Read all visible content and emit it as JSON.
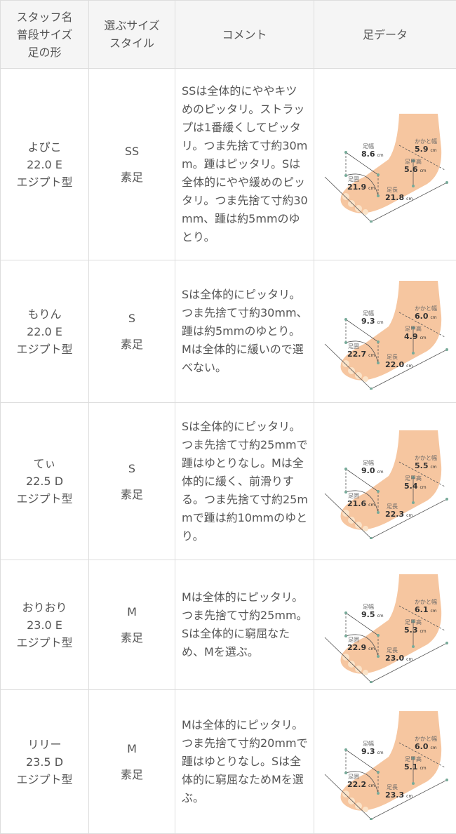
{
  "header": {
    "col1": [
      "スタッフ名",
      "普段サイズ",
      "足の形"
    ],
    "col2": [
      "選ぶサイズ",
      "スタイル"
    ],
    "col3": "コメント",
    "col4": "足データ"
  },
  "foot_labels": {
    "width": "足幅",
    "heel": "かかと幅",
    "instep": "足甲高",
    "girth": "足囲",
    "length": "足長",
    "unit": "cm"
  },
  "colors": {
    "header_bg": "#f5f5f5",
    "border": "#dddddd",
    "text": "#555555",
    "skin": "#f6c6a0"
  },
  "rows": [
    {
      "name": "よぴこ",
      "size": "22.0 E",
      "shape": "エジプト型",
      "choice": "SS",
      "style": "素足",
      "comment": "SSは全体的にややキツめのピッタリ。ストラップは1番緩くしてピッタリ。つま先捨て寸約30mm。踵はピッタリ。Sは全体的にやや緩めのピッタリ。つま先捨て寸約30mm、踵は約5mmのゆとり。",
      "foot": {
        "width": "8.6",
        "heel": "5.9",
        "instep": "5.6",
        "girth": "21.9",
        "length": "21.8"
      }
    },
    {
      "name": "もりん",
      "size": "22.0 E",
      "shape": "エジプト型",
      "choice": "S",
      "style": "素足",
      "comment": "Sは全体的にピッタリ。つま先捨て寸約30mm、踵は約5mmのゆとり。Mは全体的に緩いので選べない。",
      "foot": {
        "width": "9.3",
        "heel": "6.0",
        "instep": "4.9",
        "girth": "22.7",
        "length": "22.0"
      }
    },
    {
      "name": "てぃ",
      "size": "22.5 D",
      "shape": "エジプト型",
      "choice": "S",
      "style": "素足",
      "comment": "Sは全体的にピッタリ。つま先捨て寸約25mmで踵はゆとりなし。Mは全体的に緩く、前滑りする。つま先捨て寸約25mmで踵は約10mmのゆとり。",
      "foot": {
        "width": "9.0",
        "heel": "5.5",
        "instep": "5.4",
        "girth": "21.6",
        "length": "22.3"
      }
    },
    {
      "name": "おりおり",
      "size": "23.0 E",
      "shape": "エジプト型",
      "choice": "M",
      "style": "素足",
      "comment": "Mは全体的にピッタリ。つま先捨て寸約25mm。Sは全体的に窮屈なため、Mを選ぶ。",
      "foot": {
        "width": "9.5",
        "heel": "6.1",
        "instep": "5.3",
        "girth": "22.9",
        "length": "23.0"
      }
    },
    {
      "name": "リリー",
      "size": "23.5 D",
      "shape": "エジプト型",
      "choice": "M",
      "style": "素足",
      "comment": "Mは全体的にピッタリ。つま先捨て寸約20mmで踵はゆとりなし。Sは全体的に窮屈なためMを選ぶ。",
      "foot": {
        "width": "9.3",
        "heel": "6.0",
        "instep": "5.1",
        "girth": "22.2",
        "length": "23.3"
      }
    }
  ]
}
